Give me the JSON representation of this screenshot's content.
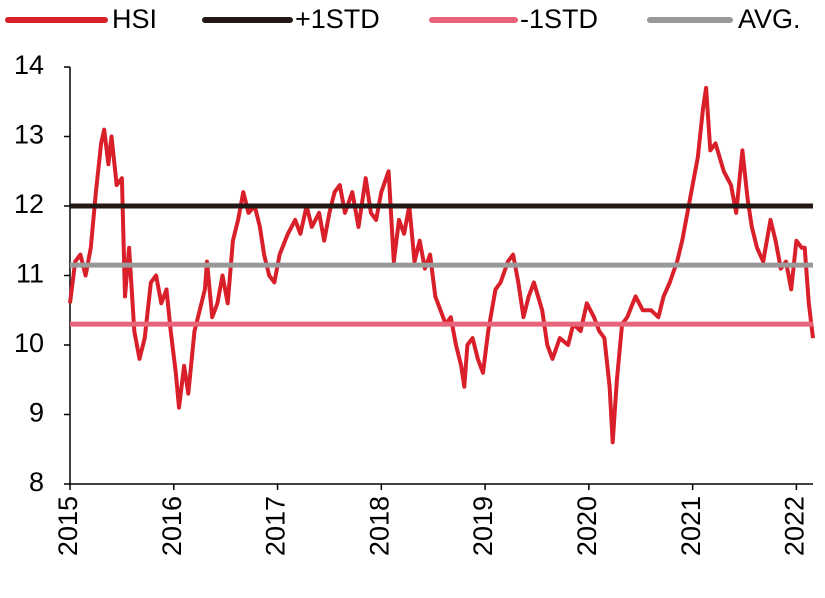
{
  "chart_data": {
    "type": "line",
    "xlim": [
      2015,
      2022.16
    ],
    "xticks": [
      2015,
      2016,
      2017,
      2018,
      2019,
      2020,
      2021,
      2022
    ],
    "ylim": [
      8,
      14
    ],
    "yticks": [
      8,
      9,
      10,
      11,
      12,
      13,
      14
    ],
    "series": [
      {
        "name": "HSI",
        "color": "#d9202a",
        "x": [
          2015.0,
          2015.05,
          2015.1,
          2015.15,
          2015.2,
          2015.25,
          2015.3,
          2015.33,
          2015.37,
          2015.4,
          2015.45,
          2015.5,
          2015.53,
          2015.57,
          2015.62,
          2015.67,
          2015.72,
          2015.78,
          2015.83,
          2015.88,
          2015.93,
          2015.97,
          2016.02,
          2016.05,
          2016.1,
          2016.14,
          2016.2,
          2016.25,
          2016.3,
          2016.32,
          2016.37,
          2016.42,
          2016.47,
          2016.52,
          2016.57,
          2016.62,
          2016.67,
          2016.72,
          2016.78,
          2016.83,
          2016.87,
          2016.92,
          2016.97,
          2017.02,
          2017.1,
          2017.17,
          2017.22,
          2017.28,
          2017.33,
          2017.4,
          2017.45,
          2017.5,
          2017.55,
          2017.6,
          2017.65,
          2017.72,
          2017.78,
          2017.85,
          2017.9,
          2017.95,
          2018.0,
          2018.07,
          2018.12,
          2018.17,
          2018.22,
          2018.27,
          2018.32,
          2018.37,
          2018.42,
          2018.47,
          2018.52,
          2018.57,
          2018.62,
          2018.67,
          2018.72,
          2018.77,
          2018.8,
          2018.83,
          2018.88,
          2018.93,
          2018.98,
          2019.03,
          2019.1,
          2019.15,
          2019.22,
          2019.27,
          2019.32,
          2019.37,
          2019.42,
          2019.47,
          2019.55,
          2019.6,
          2019.65,
          2019.72,
          2019.8,
          2019.85,
          2019.92,
          2019.98,
          2020.05,
          2020.1,
          2020.15,
          2020.2,
          2020.23,
          2020.27,
          2020.32,
          2020.37,
          2020.45,
          2020.52,
          2020.6,
          2020.67,
          2020.72,
          2020.78,
          2020.85,
          2020.9,
          2020.95,
          2021.0,
          2021.05,
          2021.1,
          2021.13,
          2021.17,
          2021.22,
          2021.3,
          2021.37,
          2021.42,
          2021.48,
          2021.53,
          2021.57,
          2021.62,
          2021.68,
          2021.75,
          2021.8,
          2021.85,
          2021.9,
          2021.95,
          2022.0,
          2022.05,
          2022.08,
          2022.12,
          2022.16
        ],
        "values": [
          10.6,
          11.2,
          11.3,
          11.0,
          11.4,
          12.2,
          12.9,
          13.1,
          12.6,
          13.0,
          12.3,
          12.4,
          10.7,
          11.4,
          10.2,
          9.8,
          10.1,
          10.9,
          11.0,
          10.6,
          10.8,
          10.2,
          9.6,
          9.1,
          9.7,
          9.3,
          10.2,
          10.5,
          10.8,
          11.2,
          10.4,
          10.6,
          11.0,
          10.6,
          11.5,
          11.8,
          12.2,
          11.9,
          12.0,
          11.7,
          11.3,
          11.0,
          10.9,
          11.3,
          11.6,
          11.8,
          11.6,
          12.0,
          11.7,
          11.9,
          11.5,
          11.9,
          12.2,
          12.3,
          11.9,
          12.2,
          11.7,
          12.4,
          11.9,
          11.8,
          12.2,
          12.5,
          11.2,
          11.8,
          11.6,
          12.0,
          11.2,
          11.5,
          11.1,
          11.3,
          10.7,
          10.5,
          10.3,
          10.4,
          10.0,
          9.7,
          9.4,
          10.0,
          10.1,
          9.8,
          9.6,
          10.2,
          10.8,
          10.9,
          11.2,
          11.3,
          10.9,
          10.4,
          10.7,
          10.9,
          10.5,
          10.0,
          9.8,
          10.1,
          10.0,
          10.3,
          10.2,
          10.6,
          10.4,
          10.2,
          10.1,
          9.4,
          8.6,
          9.5,
          10.3,
          10.4,
          10.7,
          10.5,
          10.5,
          10.4,
          10.7,
          10.9,
          11.2,
          11.5,
          11.9,
          12.3,
          12.7,
          13.4,
          13.7,
          12.8,
          12.9,
          12.5,
          12.3,
          11.9,
          12.8,
          12.1,
          11.7,
          11.4,
          11.2,
          11.8,
          11.5,
          11.1,
          11.2,
          10.8,
          11.5,
          11.4,
          11.4,
          10.6,
          10.1
        ]
      },
      {
        "name": "+1STD",
        "color": "#231815",
        "x": [
          2015,
          2022.16
        ],
        "values": [
          12.0,
          12.0
        ]
      },
      {
        "name": "-1STD",
        "color": "#e8647a",
        "x": [
          2015,
          2022.16
        ],
        "values": [
          10.3,
          10.3
        ]
      },
      {
        "name": "AVG.",
        "color": "#999999",
        "x": [
          2015,
          2022.16
        ],
        "values": [
          11.15,
          11.15
        ]
      }
    ]
  }
}
